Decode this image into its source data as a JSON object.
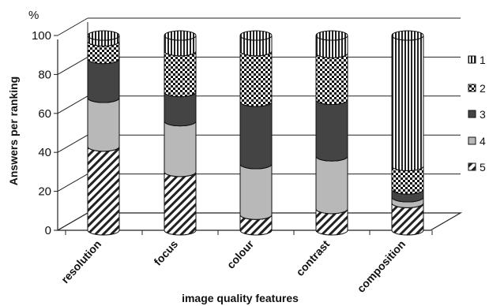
{
  "chart_data": {
    "type": "bar",
    "stacked": true,
    "style": "3d-cylinder",
    "categories": [
      "resolution",
      "focus",
      "colour",
      "contrast",
      "composition"
    ],
    "series": [
      {
        "name": "5",
        "values": [
          43,
          30,
          8,
          11,
          14
        ],
        "fill": "hatch-diag"
      },
      {
        "name": "4",
        "values": [
          25,
          26,
          26,
          27,
          3
        ],
        "fill": "#b8b8b8"
      },
      {
        "name": "3",
        "values": [
          20,
          15,
          32,
          29,
          4
        ],
        "fill": "#444444"
      },
      {
        "name": "2",
        "values": [
          9,
          21,
          26,
          24,
          12
        ],
        "fill": "checker"
      },
      {
        "name": "1",
        "values": [
          3,
          8,
          8,
          9,
          67
        ],
        "fill": "vlines"
      }
    ],
    "legend_order": [
      "1",
      "2",
      "3",
      "4",
      "5"
    ],
    "ylim": [
      0,
      100
    ],
    "yticks": [
      "0",
      "20",
      "40",
      "60",
      "80",
      "100"
    ],
    "ylabel": "Answers per ranking",
    "yunit": "%",
    "xlabel": "image quality features",
    "legend_position": "right",
    "grid": true
  }
}
